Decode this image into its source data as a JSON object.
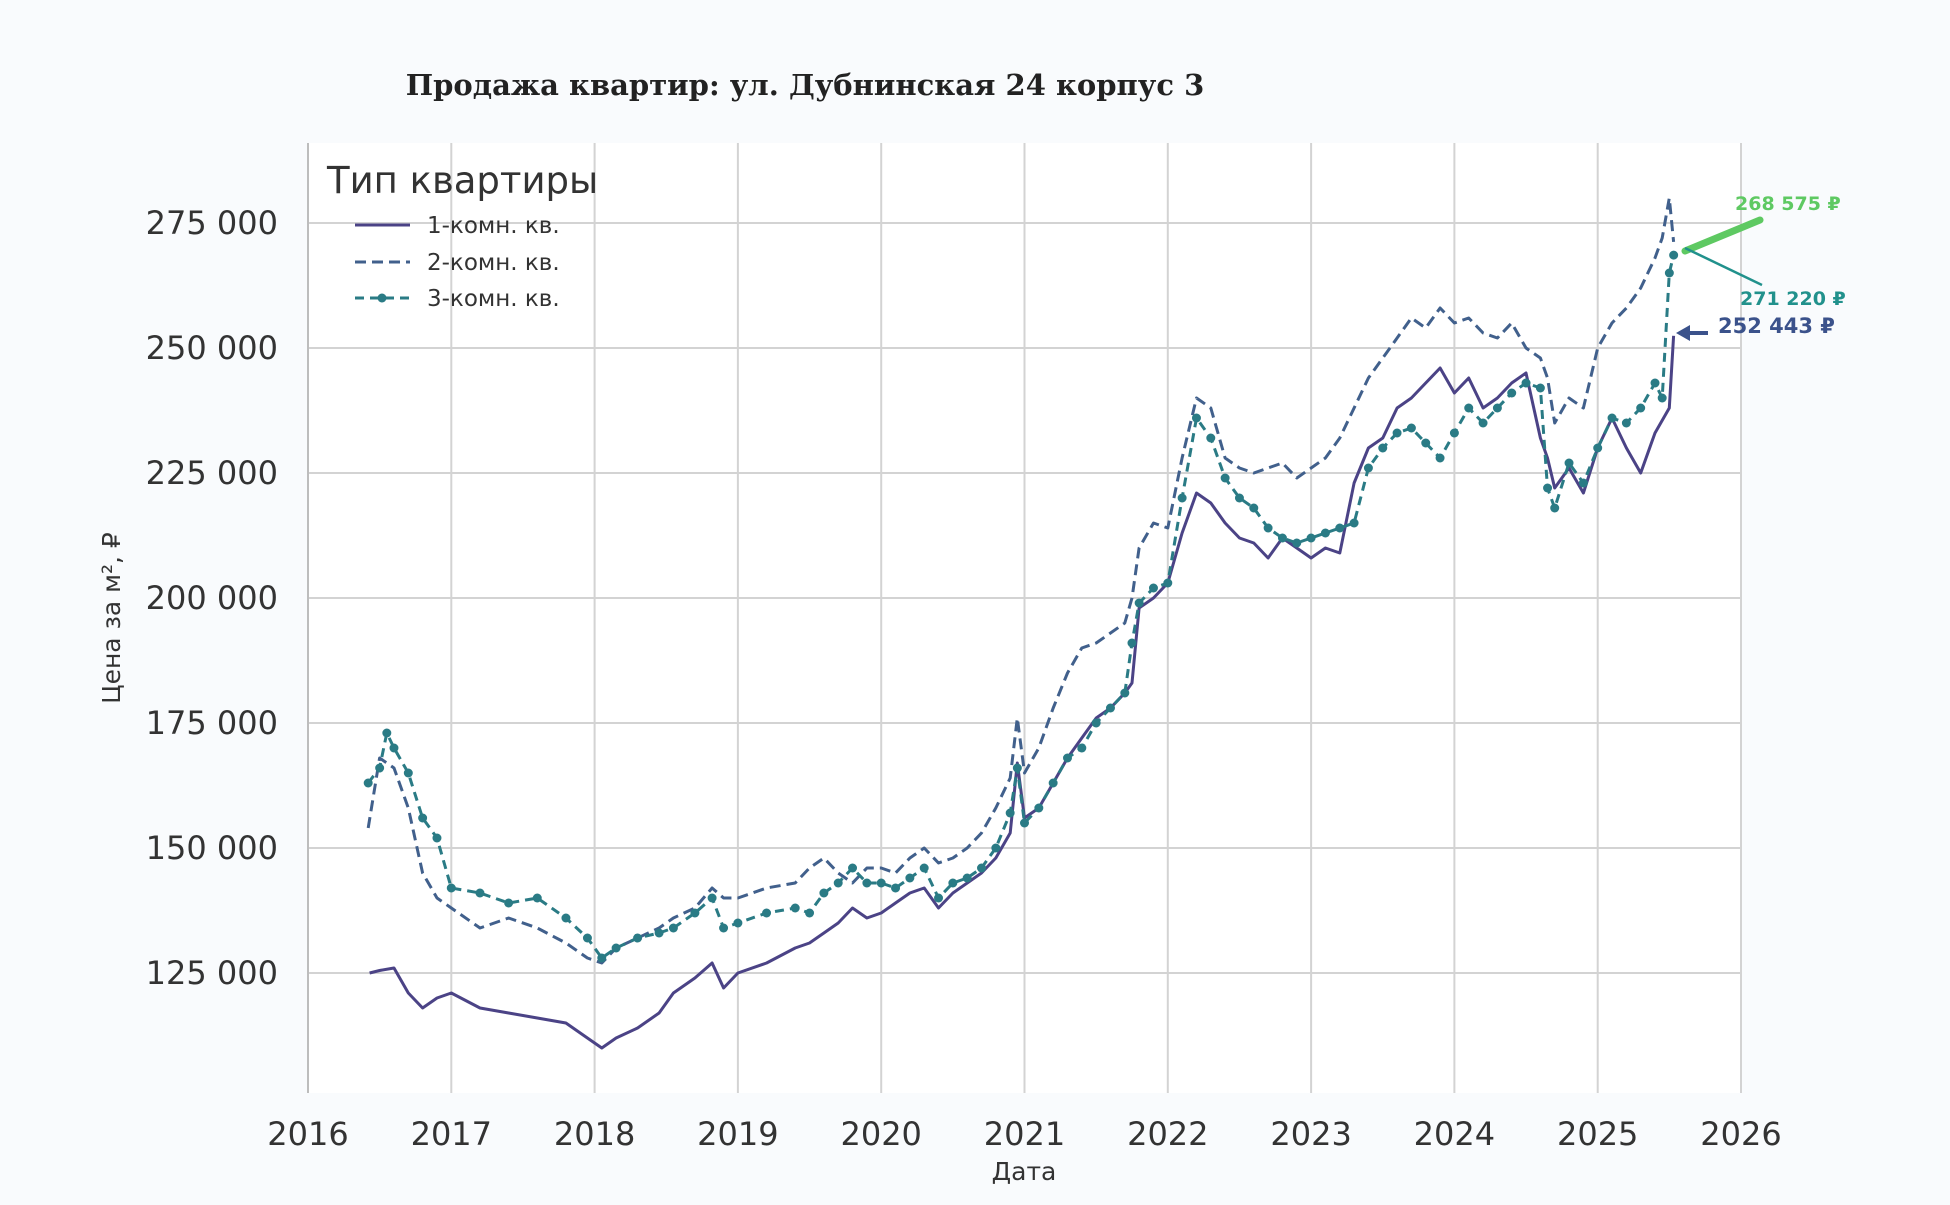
{
  "chart_data": {
    "type": "line",
    "title": "Продажа квартир: ул. Дубнинская 24 корпус 3",
    "xlabel": "Дата",
    "ylabel": "Цена за м², ₽",
    "xlim": [
      2016,
      2026
    ],
    "ylim": [
      101000,
      291000
    ],
    "xticks": [
      2016,
      2017,
      2018,
      2019,
      2020,
      2021,
      2022,
      2023,
      2024,
      2025,
      2026
    ],
    "xtick_labels": [
      "2016",
      "2017",
      "2018",
      "2019",
      "2020",
      "2021",
      "2022",
      "2023",
      "2024",
      "2025",
      "2026"
    ],
    "yticks": [
      125000,
      150000,
      175000,
      200000,
      225000,
      250000,
      275000
    ],
    "ytick_labels": [
      "125 000",
      "150 000",
      "175 000",
      "200 000",
      "225 000",
      "250 000",
      "275 000"
    ],
    "grid": true,
    "legend": {
      "title": "Тип квартиры",
      "position": "top-left"
    },
    "series": [
      {
        "name": "1-комн. кв.",
        "color": "#4b4386",
        "style": "solid",
        "x": [
          2016.43,
          2016.5,
          2016.6,
          2016.7,
          2016.8,
          2016.9,
          2017.0,
          2017.2,
          2017.4,
          2017.6,
          2017.8,
          2017.95,
          2018.05,
          2018.15,
          2018.3,
          2018.45,
          2018.55,
          2018.7,
          2018.82,
          2018.9,
          2019.0,
          2019.2,
          2019.4,
          2019.5,
          2019.6,
          2019.7,
          2019.8,
          2019.9,
          2020.0,
          2020.1,
          2020.2,
          2020.3,
          2020.4,
          2020.5,
          2020.6,
          2020.7,
          2020.8,
          2020.9,
          2020.95,
          2021.0,
          2021.1,
          2021.2,
          2021.3,
          2021.4,
          2021.5,
          2021.6,
          2021.7,
          2021.75,
          2021.8,
          2021.9,
          2022.0,
          2022.1,
          2022.2,
          2022.3,
          2022.4,
          2022.5,
          2022.6,
          2022.7,
          2022.8,
          2022.9,
          2023.0,
          2023.1,
          2023.2,
          2023.3,
          2023.4,
          2023.5,
          2023.6,
          2023.7,
          2023.8,
          2023.9,
          2024.0,
          2024.1,
          2024.2,
          2024.3,
          2024.4,
          2024.5,
          2024.6,
          2024.65,
          2024.7,
          2024.8,
          2024.9,
          2025.0,
          2025.1,
          2025.2,
          2025.3,
          2025.4,
          2025.5,
          2025.53
        ],
        "y": [
          125000,
          125500,
          126000,
          121000,
          118000,
          120000,
          121000,
          118000,
          117000,
          116000,
          115000,
          112000,
          110000,
          112000,
          114000,
          117000,
          121000,
          124000,
          127000,
          122000,
          125000,
          127000,
          130000,
          131000,
          133000,
          135000,
          138000,
          136000,
          137000,
          139000,
          141000,
          142000,
          138000,
          141000,
          143000,
          145000,
          148000,
          153000,
          167000,
          156000,
          158000,
          163000,
          168000,
          172000,
          176000,
          178000,
          181000,
          183000,
          198000,
          200000,
          203000,
          213000,
          221000,
          219000,
          215000,
          212000,
          211000,
          208000,
          212000,
          210000,
          208000,
          210000,
          209000,
          223000,
          230000,
          232000,
          238000,
          240000,
          243000,
          246000,
          241000,
          244000,
          238000,
          240000,
          243000,
          245000,
          232000,
          228000,
          222000,
          226000,
          221000,
          230000,
          236000,
          230000,
          225000,
          233000,
          238000,
          252443
        ]
      },
      {
        "name": "2-комн. кв.",
        "color": "#41608c",
        "style": "dashed",
        "x": [
          2016.42,
          2016.5,
          2016.6,
          2016.7,
          2016.8,
          2016.9,
          2017.0,
          2017.2,
          2017.4,
          2017.6,
          2017.8,
          2017.95,
          2018.05,
          2018.15,
          2018.3,
          2018.45,
          2018.55,
          2018.7,
          2018.82,
          2018.9,
          2019.0,
          2019.2,
          2019.4,
          2019.5,
          2019.6,
          2019.7,
          2019.8,
          2019.9,
          2020.0,
          2020.1,
          2020.2,
          2020.3,
          2020.4,
          2020.5,
          2020.6,
          2020.7,
          2020.8,
          2020.9,
          2020.95,
          2021.0,
          2021.1,
          2021.2,
          2021.3,
          2021.4,
          2021.5,
          2021.6,
          2021.7,
          2021.75,
          2021.8,
          2021.9,
          2022.0,
          2022.1,
          2022.2,
          2022.3,
          2022.4,
          2022.5,
          2022.6,
          2022.7,
          2022.8,
          2022.9,
          2023.0,
          2023.1,
          2023.2,
          2023.3,
          2023.4,
          2023.5,
          2023.6,
          2023.7,
          2023.8,
          2023.9,
          2024.0,
          2024.1,
          2024.2,
          2024.3,
          2024.4,
          2024.5,
          2024.6,
          2024.65,
          2024.7,
          2024.8,
          2024.9,
          2025.0,
          2025.1,
          2025.2,
          2025.3,
          2025.4,
          2025.45,
          2025.5,
          2025.53
        ],
        "y": [
          154000,
          168000,
          166000,
          158000,
          145000,
          140000,
          138000,
          134000,
          136000,
          134000,
          131000,
          128000,
          127000,
          130000,
          132000,
          134000,
          136000,
          138000,
          142000,
          140000,
          140000,
          142000,
          143000,
          146000,
          148000,
          145000,
          143000,
          146000,
          146000,
          145000,
          148000,
          150000,
          147000,
          148000,
          150000,
          153000,
          158000,
          164000,
          176000,
          165000,
          170000,
          178000,
          185000,
          190000,
          191000,
          193000,
          195000,
          200000,
          210000,
          215000,
          214000,
          228000,
          240000,
          238000,
          228000,
          226000,
          225000,
          226000,
          227000,
          224000,
          226000,
          228000,
          232000,
          238000,
          244000,
          248000,
          252000,
          256000,
          254000,
          258000,
          255000,
          256000,
          253000,
          252000,
          255000,
          250000,
          248000,
          244000,
          235000,
          240000,
          238000,
          250000,
          255000,
          258000,
          262000,
          268000,
          272000,
          280000,
          271220
        ]
      },
      {
        "name": "3-комн. кв.",
        "color": "#2a7b85",
        "style": "dotted-markers",
        "x": [
          2016.42,
          2016.5,
          2016.55,
          2016.6,
          2016.7,
          2016.8,
          2016.9,
          2017.0,
          2017.2,
          2017.4,
          2017.6,
          2017.8,
          2017.95,
          2018.05,
          2018.15,
          2018.3,
          2018.45,
          2018.55,
          2018.7,
          2018.82,
          2018.9,
          2019.0,
          2019.2,
          2019.4,
          2019.5,
          2019.6,
          2019.7,
          2019.8,
          2019.9,
          2020.0,
          2020.1,
          2020.2,
          2020.3,
          2020.4,
          2020.5,
          2020.6,
          2020.7,
          2020.8,
          2020.9,
          2020.95,
          2021.0,
          2021.1,
          2021.2,
          2021.3,
          2021.4,
          2021.5,
          2021.6,
          2021.7,
          2021.75,
          2021.8,
          2021.9,
          2022.0,
          2022.1,
          2022.2,
          2022.3,
          2022.4,
          2022.5,
          2022.6,
          2022.7,
          2022.8,
          2022.9,
          2023.0,
          2023.1,
          2023.2,
          2023.3,
          2023.4,
          2023.5,
          2023.6,
          2023.7,
          2023.8,
          2023.9,
          2024.0,
          2024.1,
          2024.2,
          2024.3,
          2024.4,
          2024.5,
          2024.6,
          2024.65,
          2024.7,
          2024.8,
          2024.9,
          2025.0,
          2025.1,
          2025.2,
          2025.3,
          2025.4,
          2025.45,
          2025.5,
          2025.53
        ],
        "y": [
          163000,
          166000,
          173000,
          170000,
          165000,
          156000,
          152000,
          142000,
          141000,
          139000,
          140000,
          136000,
          132000,
          128000,
          130000,
          132000,
          133000,
          134000,
          137000,
          140000,
          134000,
          135000,
          137000,
          138000,
          137000,
          141000,
          143000,
          146000,
          143000,
          143000,
          142000,
          144000,
          146000,
          140000,
          143000,
          144000,
          146000,
          150000,
          157000,
          166000,
          155000,
          158000,
          163000,
          168000,
          170000,
          175000,
          178000,
          181000,
          191000,
          199000,
          202000,
          203000,
          220000,
          236000,
          232000,
          224000,
          220000,
          218000,
          214000,
          212000,
          211000,
          212000,
          213000,
          214000,
          215000,
          226000,
          230000,
          233000,
          234000,
          231000,
          228000,
          233000,
          238000,
          235000,
          238000,
          241000,
          243000,
          242000,
          222000,
          218000,
          227000,
          223000,
          230000,
          236000,
          235000,
          238000,
          243000,
          240000,
          265000,
          268575
        ]
      }
    ],
    "annotations": [
      {
        "text": "268 575 ₽",
        "color": "#5ec962",
        "series": "3-комн. кв."
      },
      {
        "text": "271 220 ₽",
        "color": "#21918c",
        "series": "2-комн. кв."
      },
      {
        "text": "252 443 ₽",
        "color": "#3b528b",
        "series": "1-комн. кв."
      }
    ]
  }
}
